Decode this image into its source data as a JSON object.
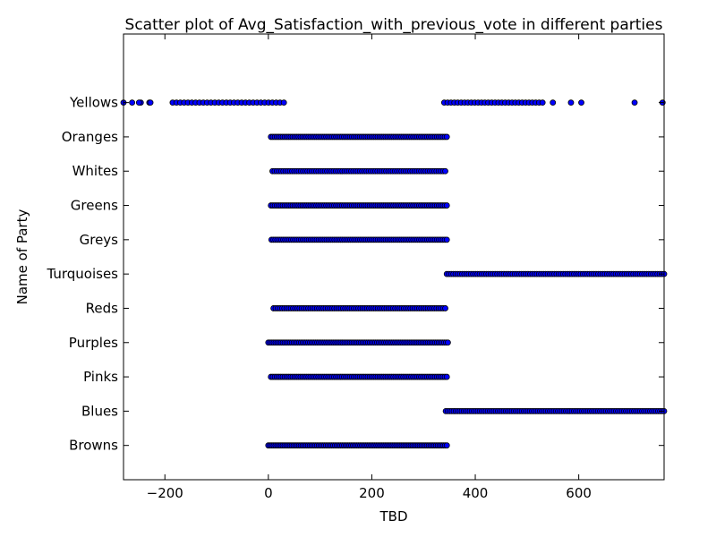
{
  "chart_data": {
    "type": "scatter",
    "title": "Scatter plot of Avg_Satisfaction_with_previous_vote in different parties",
    "xlabel": "TBD",
    "ylabel": "Name of Party",
    "xlim": [
      -280,
      765
    ],
    "ylim": [
      -1,
      12
    ],
    "x_ticks": [
      -200,
      0,
      200,
      400,
      600
    ],
    "x_tick_labels": [
      "−200",
      "0",
      "200",
      "400",
      "600"
    ],
    "categories": [
      "Browns",
      "Blues",
      "Pinks",
      "Purples",
      "Reds",
      "Turquoises",
      "Greys",
      "Greens",
      "Whites",
      "Oranges",
      "Yellows"
    ],
    "grid": false,
    "series": [
      {
        "color": "#0000ff",
        "ranges": {
          "Yellows": [
            [
              -280,
              -230,
              4
            ],
            [
              -185,
              30,
              30
            ],
            [
              340,
              530,
              30
            ]
          ],
          "Oranges": [
            [
              5,
              345,
              90
            ]
          ],
          "Whites": [
            [
              8,
              342,
              80
            ]
          ],
          "Greens": [
            [
              5,
              345,
              90
            ]
          ],
          "Greys": [
            [
              6,
              345,
              90
            ]
          ],
          "Turquoises": [
            [
              345,
              765,
              100
            ]
          ],
          "Reds": [
            [
              10,
              342,
              80
            ]
          ],
          "Purples": [
            [
              0,
              347,
              100
            ]
          ],
          "Pinks": [
            [
              5,
              345,
              90
            ]
          ],
          "Blues": [
            [
              343,
              765,
              110
            ]
          ],
          "Browns": [
            [
              0,
              345,
              100
            ]
          ]
        },
        "points": [
          {
            "x": -250,
            "y": "Yellows"
          },
          {
            "x": -228,
            "y": "Yellows"
          },
          {
            "x": 550,
            "y": "Yellows"
          },
          {
            "x": 585,
            "y": "Yellows"
          },
          {
            "x": 605,
            "y": "Yellows"
          },
          {
            "x": 708,
            "y": "Yellows"
          },
          {
            "x": 762,
            "y": "Yellows"
          }
        ]
      }
    ]
  }
}
